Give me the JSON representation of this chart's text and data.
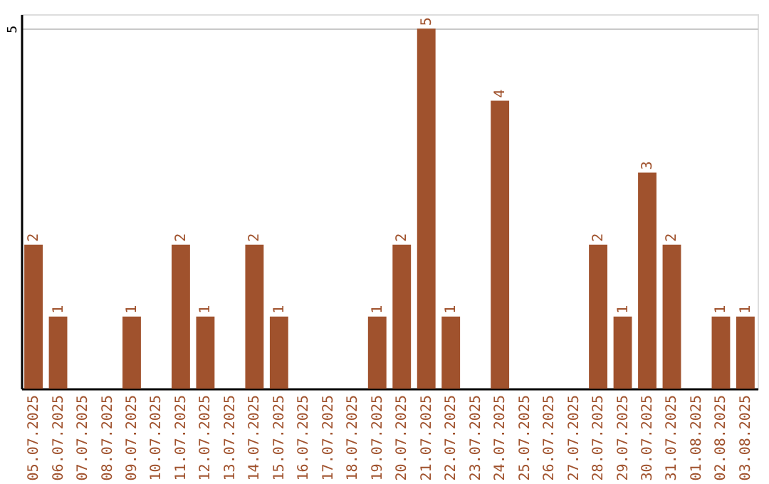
{
  "chart_data": {
    "type": "bar",
    "categories": [
      "05.07.2025",
      "06.07.2025",
      "07.07.2025",
      "08.07.2025",
      "09.07.2025",
      "10.07.2025",
      "11.07.2025",
      "12.07.2025",
      "13.07.2025",
      "14.07.2025",
      "15.07.2025",
      "16.07.2025",
      "17.07.2025",
      "18.07.2025",
      "19.07.2025",
      "20.07.2025",
      "21.07.2025",
      "22.07.2025",
      "23.07.2025",
      "24.07.2025",
      "25.07.2025",
      "26.07.2025",
      "27.07.2025",
      "28.07.2025",
      "29.07.2025",
      "30.07.2025",
      "31.07.2025",
      "01.08.2025",
      "02.08.2025",
      "03.08.2025"
    ],
    "values": [
      2,
      1,
      0,
      0,
      1,
      0,
      2,
      1,
      0,
      2,
      1,
      0,
      0,
      0,
      1,
      2,
      5,
      1,
      0,
      4,
      0,
      0,
      0,
      2,
      1,
      3,
      2,
      0,
      1,
      1
    ],
    "value_labels": [
      "2",
      "1",
      null,
      null,
      "1",
      null,
      "2",
      "1",
      null,
      "2",
      "1",
      null,
      null,
      null,
      "1",
      "2",
      "5",
      "1",
      null,
      "4",
      null,
      null,
      null,
      "2",
      "1",
      "3",
      "2",
      null,
      "1",
      "1"
    ],
    "color": "#a0522d",
    "ylim": [
      0,
      5.2
    ],
    "yticks": [
      5
    ],
    "grid": "y"
  }
}
